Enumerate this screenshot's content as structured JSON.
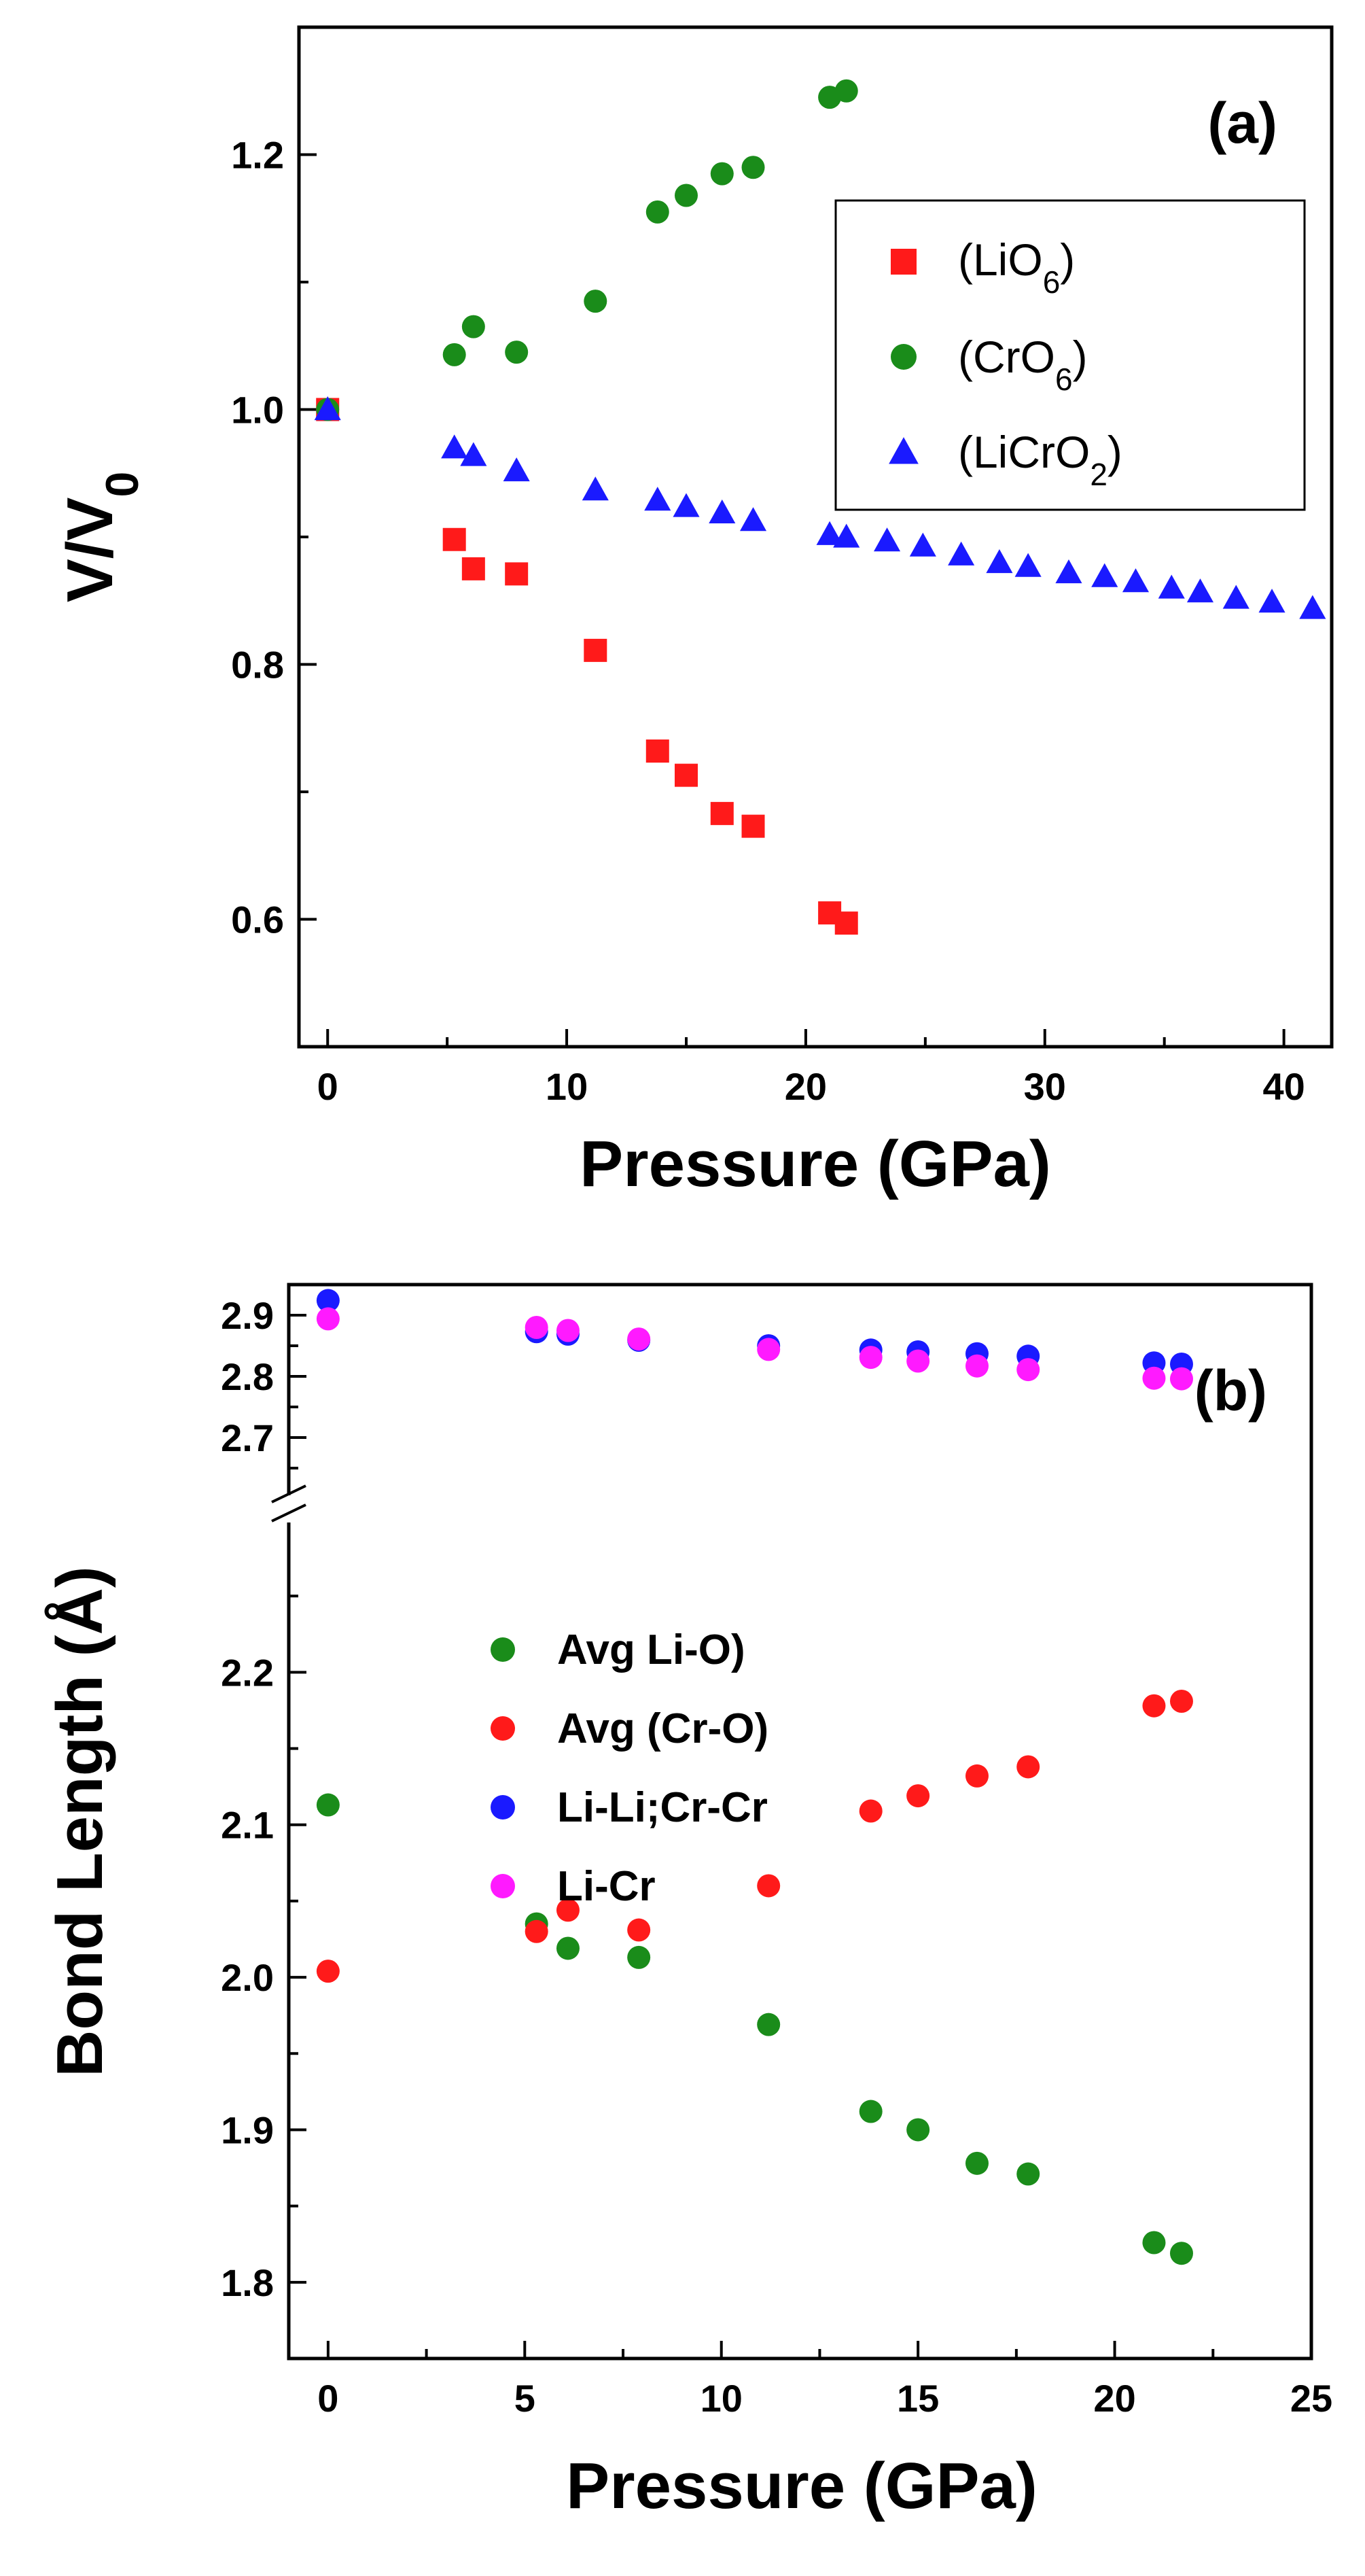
{
  "chart_data": [
    {
      "type": "scatter",
      "panel_label": "(a)",
      "xlabel": "Pressure (GPa)",
      "ylabel": "V/V",
      "ylabel_sub": "0",
      "xlim": [
        -1.2,
        42
      ],
      "ylim": [
        0.5,
        1.3
      ],
      "xticks": [
        0,
        10,
        20,
        30,
        40
      ],
      "xtick_labels": [
        "0",
        "10",
        "20",
        "30",
        "40"
      ],
      "yticks": [
        0.6,
        0.8,
        1.0,
        1.2
      ],
      "ytick_labels": [
        "0.6",
        "0.8",
        "1.0",
        "1.2"
      ],
      "legend_position": "upper-right",
      "series": [
        {
          "name": "LiO6",
          "label_main": "(LiO",
          "label_sub": "6",
          "label_end": ")",
          "marker": "square",
          "color": "#ff1a1a",
          "x": [
            0,
            5.3,
            6.1,
            7.9,
            11.2,
            13.8,
            15.0,
            16.5,
            17.8,
            21.0,
            21.7
          ],
          "y": [
            1.0,
            0.898,
            0.875,
            0.871,
            0.811,
            0.732,
            0.713,
            0.683,
            0.673,
            0.605,
            0.597
          ]
        },
        {
          "name": "CrO6",
          "label_main": "(CrO",
          "label_sub": "6",
          "label_end": ")",
          "marker": "circle",
          "color": "#1a8c1a",
          "x": [
            0,
            5.3,
            6.1,
            7.9,
            11.2,
            13.8,
            15.0,
            16.5,
            17.8,
            21.0,
            21.7
          ],
          "y": [
            1.0,
            1.043,
            1.065,
            1.045,
            1.085,
            1.155,
            1.168,
            1.185,
            1.19,
            1.245,
            1.25
          ]
        },
        {
          "name": "LiCrO2",
          "label_main": "(LiCrO",
          "label_sub": "2",
          "label_end": ")",
          "marker": "triangle",
          "color": "#1a1aff",
          "x": [
            0,
            5.3,
            6.1,
            7.9,
            11.2,
            13.8,
            15.0,
            16.5,
            17.8,
            21.0,
            21.7,
            23.4,
            24.9,
            26.5,
            28.1,
            29.3,
            31.0,
            32.5,
            33.8,
            35.3,
            36.5,
            38.0,
            39.5,
            41.2
          ],
          "y": [
            1.0,
            0.97,
            0.964,
            0.952,
            0.937,
            0.929,
            0.924,
            0.919,
            0.913,
            0.902,
            0.9,
            0.897,
            0.893,
            0.886,
            0.88,
            0.877,
            0.872,
            0.869,
            0.865,
            0.86,
            0.857,
            0.852,
            0.849,
            0.844
          ]
        }
      ]
    },
    {
      "type": "scatter",
      "panel_label": "(b)",
      "xlabel": "Pressure (GPa)",
      "ylabel": "Bond Length  (Å)",
      "xlim": [
        -1,
        25
      ],
      "ylim_lower": [
        1.75,
        2.3
      ],
      "ylim_upper": [
        2.6,
        2.95
      ],
      "axis_break": true,
      "xticks": [
        0,
        5,
        10,
        15,
        20,
        25
      ],
      "xtick_labels": [
        "0",
        "5",
        "10",
        "15",
        "20",
        "25"
      ],
      "yticks_lower": [
        1.8,
        1.9,
        2.0,
        2.1,
        2.2
      ],
      "ytick_labels_lower": [
        "1.8",
        "1.9",
        "2.0",
        "2.1",
        "2.2"
      ],
      "yticks_upper": [
        2.7,
        2.8,
        2.9
      ],
      "ytick_labels_upper": [
        "2.7",
        "2.8",
        "2.9"
      ],
      "legend_position": "left",
      "series": [
        {
          "name": "Avg Li-O)",
          "marker": "circle",
          "color": "#1a8c1a",
          "x": [
            0,
            5.3,
            6.1,
            7.9,
            11.2,
            13.8,
            15.0,
            16.5,
            17.8,
            21.0,
            21.7
          ],
          "y": [
            2.113,
            2.035,
            2.019,
            2.013,
            1.969,
            1.912,
            1.9,
            1.878,
            1.871,
            1.826,
            1.819
          ]
        },
        {
          "name": "Avg (Cr-O)",
          "marker": "circle",
          "color": "#ff1a1a",
          "x": [
            0,
            5.3,
            6.1,
            7.9,
            11.2,
            13.8,
            15.0,
            16.5,
            17.8,
            21.0,
            21.7
          ],
          "y": [
            2.004,
            2.03,
            2.044,
            2.031,
            2.06,
            2.109,
            2.119,
            2.132,
            2.138,
            2.178,
            2.181
          ]
        },
        {
          "name": "Li-Li;Cr-Cr",
          "marker": "circle",
          "color": "#1a1aff",
          "x": [
            0,
            5.3,
            6.1,
            7.9,
            11.2,
            13.8,
            15.0,
            16.5,
            17.8,
            21.0,
            21.7
          ],
          "y": [
            2.924,
            2.873,
            2.869,
            2.859,
            2.85,
            2.843,
            2.84,
            2.837,
            2.833,
            2.822,
            2.82
          ]
        },
        {
          "name": "Li-Cr",
          "marker": "circle",
          "color": "#ff1aff",
          "x": [
            0,
            5.3,
            6.1,
            7.9,
            11.2,
            13.8,
            15.0,
            16.5,
            17.8,
            21.0,
            21.7
          ],
          "y": [
            2.894,
            2.88,
            2.875,
            2.861,
            2.844,
            2.831,
            2.825,
            2.817,
            2.811,
            2.797,
            2.796
          ]
        }
      ]
    }
  ]
}
